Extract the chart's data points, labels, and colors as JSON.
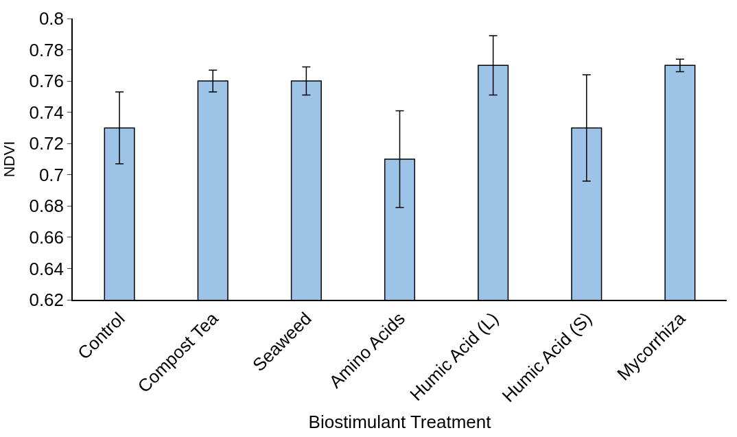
{
  "chart_data": {
    "type": "bar",
    "xlabel": "Biostimulant Treatment",
    "ylabel": "NDVI",
    "categories": [
      "Control",
      "Compost Tea",
      "Seaweed",
      "Amino Acids",
      "Humic Acid (L)",
      "Humic Acid (S)",
      "Mycorrhiza"
    ],
    "values": [
      0.73,
      0.76,
      0.76,
      0.71,
      0.77,
      0.73,
      0.77
    ],
    "errors": [
      0.023,
      0.007,
      0.009,
      0.031,
      0.019,
      0.034,
      0.004
    ],
    "color": "#9dc3e6",
    "ylim": [
      0.62,
      0.8
    ],
    "yticks": [
      {
        "value": 0.62,
        "label": "0.62"
      },
      {
        "value": 0.64,
        "label": "0.64"
      },
      {
        "value": 0.66,
        "label": "0.66"
      },
      {
        "value": 0.68,
        "label": "0.68"
      },
      {
        "value": 0.7,
        "label": "0.7"
      },
      {
        "value": 0.72,
        "label": "0.72"
      },
      {
        "value": 0.74,
        "label": "0.74"
      },
      {
        "value": 0.76,
        "label": "0.76"
      },
      {
        "value": 0.78,
        "label": "0.78"
      },
      {
        "value": 0.8,
        "label": "0.8"
      }
    ],
    "data_labels": false
  }
}
